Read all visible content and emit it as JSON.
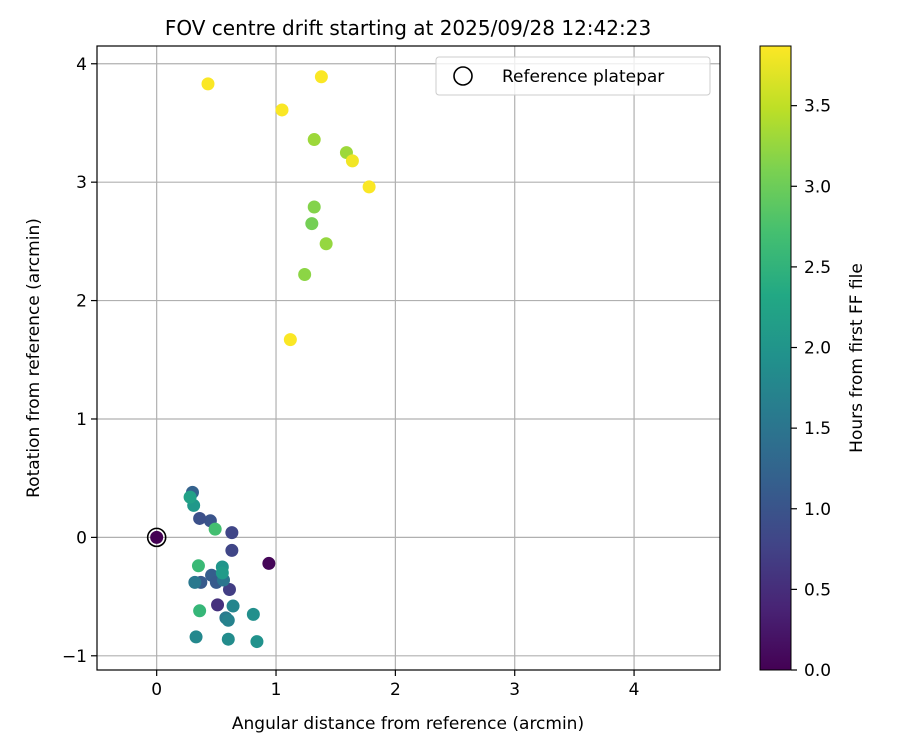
{
  "chart_data": {
    "type": "scatter",
    "title": "FOV centre drift starting at 2025/09/28 12:42:23",
    "xlabel": "Angular distance from reference (arcmin)",
    "ylabel": "Rotation from reference (arcmin)",
    "xlim": [
      -0.5,
      4.72
    ],
    "ylim": [
      -1.12,
      4.15
    ],
    "xticks": [
      0,
      1,
      2,
      3,
      4
    ],
    "yticks": [
      -1,
      0,
      1,
      2,
      3,
      4
    ],
    "xtick_labels": [
      "0",
      "1",
      "2",
      "3",
      "4"
    ],
    "ytick_labels": [
      "−1",
      "0",
      "1",
      "2",
      "3",
      "4"
    ],
    "grid": true,
    "legend": {
      "position": "top-right",
      "entries": [
        "Reference platepar"
      ]
    },
    "reference_point": {
      "x": 0,
      "y": 0
    },
    "colorbar": {
      "label": "Hours from first FF file",
      "colormap": "viridis",
      "range": [
        0,
        3.87
      ],
      "ticks": [
        0.0,
        0.5,
        1.0,
        1.5,
        2.0,
        2.5,
        3.0,
        3.5
      ],
      "tick_labels": [
        "0.0",
        "0.5",
        "1.0",
        "1.5",
        "2.0",
        "2.5",
        "3.0",
        "3.5"
      ]
    },
    "points": [
      {
        "x": 0.0,
        "y": 0.0,
        "hours": 0.0
      },
      {
        "x": 0.94,
        "y": -0.22,
        "hours": 0.05
      },
      {
        "x": 0.51,
        "y": -0.57,
        "hours": 0.55
      },
      {
        "x": 0.61,
        "y": -0.44,
        "hours": 0.7
      },
      {
        "x": 0.63,
        "y": 0.04,
        "hours": 0.8
      },
      {
        "x": 0.63,
        "y": -0.11,
        "hours": 0.8
      },
      {
        "x": 0.45,
        "y": 0.14,
        "hours": 1.0
      },
      {
        "x": 0.36,
        "y": 0.16,
        "hours": 0.95
      },
      {
        "x": 0.3,
        "y": 0.38,
        "hours": 1.2
      },
      {
        "x": 0.46,
        "y": -0.32,
        "hours": 1.15
      },
      {
        "x": 0.5,
        "y": -0.38,
        "hours": 1.1
      },
      {
        "x": 0.37,
        "y": -0.38,
        "hours": 1.1
      },
      {
        "x": 0.32,
        "y": -0.38,
        "hours": 1.55
      },
      {
        "x": 0.56,
        "y": -0.36,
        "hours": 1.5
      },
      {
        "x": 0.58,
        "y": -0.68,
        "hours": 1.6
      },
      {
        "x": 0.6,
        "y": -0.7,
        "hours": 1.7
      },
      {
        "x": 0.64,
        "y": -0.58,
        "hours": 1.75
      },
      {
        "x": 0.33,
        "y": -0.84,
        "hours": 1.8
      },
      {
        "x": 0.6,
        "y": -0.86,
        "hours": 1.85
      },
      {
        "x": 0.81,
        "y": -0.65,
        "hours": 1.9
      },
      {
        "x": 0.84,
        "y": -0.88,
        "hours": 1.95
      },
      {
        "x": 0.55,
        "y": -0.25,
        "hours": 2.0
      },
      {
        "x": 0.55,
        "y": -0.3,
        "hours": 2.1
      },
      {
        "x": 0.31,
        "y": 0.27,
        "hours": 2.05
      },
      {
        "x": 0.28,
        "y": 0.34,
        "hours": 2.2
      },
      {
        "x": 0.35,
        "y": -0.24,
        "hours": 2.6
      },
      {
        "x": 0.36,
        "y": -0.62,
        "hours": 2.55
      },
      {
        "x": 0.49,
        "y": 0.07,
        "hours": 2.7
      },
      {
        "x": 1.24,
        "y": 2.22,
        "hours": 3.2
      },
      {
        "x": 1.3,
        "y": 2.65,
        "hours": 3.05
      },
      {
        "x": 1.32,
        "y": 2.79,
        "hours": 3.15
      },
      {
        "x": 1.42,
        "y": 2.48,
        "hours": 3.25
      },
      {
        "x": 1.32,
        "y": 3.36,
        "hours": 3.3
      },
      {
        "x": 1.59,
        "y": 3.25,
        "hours": 3.3
      },
      {
        "x": 1.12,
        "y": 1.67,
        "hours": 3.85
      },
      {
        "x": 1.78,
        "y": 2.96,
        "hours": 3.85
      },
      {
        "x": 1.64,
        "y": 3.18,
        "hours": 3.8
      },
      {
        "x": 1.05,
        "y": 3.61,
        "hours": 3.85
      },
      {
        "x": 1.38,
        "y": 3.89,
        "hours": 3.85
      },
      {
        "x": 0.43,
        "y": 3.83,
        "hours": 3.85
      }
    ]
  }
}
